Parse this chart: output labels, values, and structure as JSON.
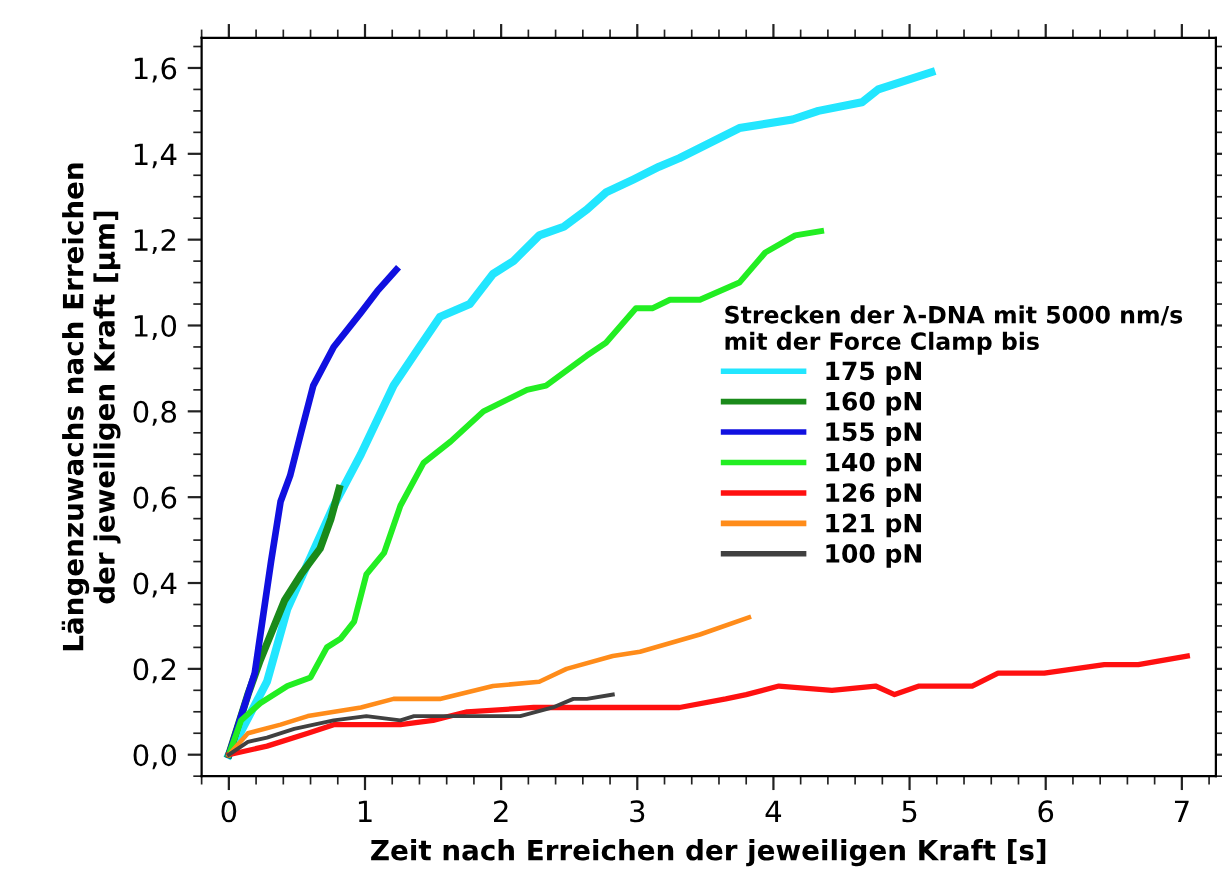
{
  "chart_data": {
    "type": "line",
    "xlabel": "Zeit nach Erreichen der jeweiligen Kraft [s]",
    "ylabel": "Längenzuwachs nach Erreichen\nder jeweiligen Kraft [µm]",
    "legend_title": "Strecken der λ-DNA mit 5000 nm/s\nmit der Force Clamp bis",
    "legend": "center right",
    "grid": false,
    "marker": "none",
    "line_style": "solid",
    "xlim": [
      -0.2,
      7.25
    ],
    "ylim": [
      -0.05,
      1.67
    ],
    "xticks": [
      0,
      1,
      2,
      3,
      4,
      5,
      6,
      7
    ],
    "yticks": [
      {
        "value": 0.0,
        "label": "0,0"
      },
      {
        "value": 0.2,
        "label": "0,2"
      },
      {
        "value": 0.4,
        "label": "0,4"
      },
      {
        "value": 0.6,
        "label": "0,6"
      },
      {
        "value": 0.8,
        "label": "0,8"
      },
      {
        "value": 1.0,
        "label": "1,0"
      },
      {
        "value": 1.2,
        "label": "1,2"
      },
      {
        "value": 1.4,
        "label": "1,4"
      },
      {
        "value": 1.6,
        "label": "1,6"
      }
    ],
    "series": [
      {
        "name": "175 pN",
        "color": "#22e6ff",
        "x": [
          0,
          0.28,
          0.43,
          0.77,
          0.97,
          1.21,
          1.4,
          1.55,
          1.77,
          1.94,
          2.09,
          2.28,
          2.46,
          2.63,
          2.77,
          2.97,
          3.16,
          3.31,
          3.75,
          4.14,
          4.33,
          4.65,
          4.77,
          5.16
        ],
        "values": [
          0,
          0.17,
          0.34,
          0.58,
          0.7,
          0.86,
          0.95,
          1.02,
          1.05,
          1.12,
          1.15,
          1.21,
          1.23,
          1.27,
          1.31,
          1.34,
          1.37,
          1.39,
          1.46,
          1.48,
          1.5,
          1.52,
          1.55,
          1.59
        ]
      },
      {
        "name": "160 pN",
        "color": "#1a8a1a",
        "x": [
          0,
          0.14,
          0.23,
          0.41,
          0.53,
          0.67,
          0.75,
          0.81
        ],
        "values": [
          0,
          0.14,
          0.22,
          0.36,
          0.42,
          0.48,
          0.55,
          0.62
        ]
      },
      {
        "name": "155 pN",
        "color": "#1010e0",
        "x": [
          0,
          0.19,
          0.31,
          0.38,
          0.45,
          0.53,
          0.62,
          0.77,
          0.97,
          1.09,
          1.23
        ],
        "values": [
          0,
          0.19,
          0.45,
          0.59,
          0.65,
          0.75,
          0.86,
          0.95,
          1.03,
          1.08,
          1.13
        ]
      },
      {
        "name": "140 pN",
        "color": "#22ee22",
        "x": [
          0,
          0.09,
          0.23,
          0.43,
          0.6,
          0.72,
          0.82,
          0.92,
          1.01,
          1.14,
          1.26,
          1.43,
          1.63,
          1.87,
          2.19,
          2.33,
          2.63,
          2.77,
          2.99,
          3.11,
          3.24,
          3.46,
          3.75,
          3.94,
          4.16,
          4.35
        ],
        "values": [
          0,
          0.08,
          0.12,
          0.16,
          0.18,
          0.25,
          0.27,
          0.31,
          0.42,
          0.47,
          0.58,
          0.68,
          0.73,
          0.8,
          0.85,
          0.86,
          0.93,
          0.96,
          1.04,
          1.04,
          1.06,
          1.06,
          1.1,
          1.17,
          1.21,
          1.22
        ]
      },
      {
        "name": "126 pN",
        "color": "#ff1010",
        "x": [
          0,
          0.28,
          0.58,
          0.77,
          1.26,
          1.5,
          1.75,
          2.24,
          2.53,
          2.82,
          3.31,
          3.65,
          3.8,
          4.04,
          4.43,
          4.75,
          4.89,
          5.07,
          5.46,
          5.65,
          5.99,
          6.43,
          6.68,
          7.04
        ],
        "values": [
          0,
          0.02,
          0.05,
          0.07,
          0.07,
          0.08,
          0.1,
          0.11,
          0.11,
          0.11,
          0.11,
          0.13,
          0.14,
          0.16,
          0.15,
          0.16,
          0.14,
          0.16,
          0.16,
          0.19,
          0.19,
          0.21,
          0.21,
          0.23
        ]
      },
      {
        "name": "121 pN",
        "color": "#ff8c1a",
        "x": [
          0,
          0.14,
          0.38,
          0.58,
          0.97,
          1.21,
          1.55,
          1.94,
          2.28,
          2.48,
          2.82,
          3.02,
          3.46,
          3.82
        ],
        "values": [
          0,
          0.05,
          0.07,
          0.09,
          0.11,
          0.13,
          0.13,
          0.16,
          0.17,
          0.2,
          0.23,
          0.24,
          0.28,
          0.32
        ]
      },
      {
        "name": "100 pN",
        "color": "#404040",
        "x": [
          0,
          0.14,
          0.28,
          0.48,
          0.77,
          1.01,
          1.26,
          1.36,
          1.75,
          2.14,
          2.38,
          2.53,
          2.63,
          2.82
        ],
        "values": [
          0,
          0.03,
          0.04,
          0.06,
          0.08,
          0.09,
          0.08,
          0.09,
          0.09,
          0.09,
          0.11,
          0.13,
          0.13,
          0.14
        ]
      }
    ]
  }
}
